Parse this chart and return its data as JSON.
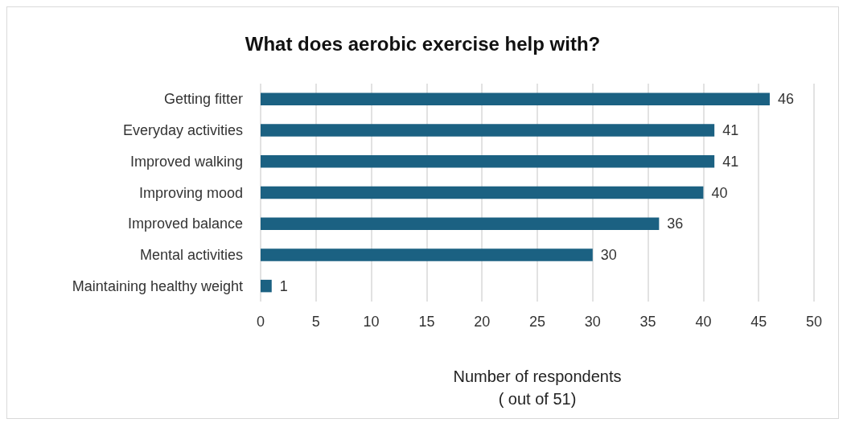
{
  "chart_data": {
    "type": "bar",
    "orientation": "horizontal",
    "title": "What does aerobic exercise help with?",
    "categories": [
      "Getting fitter",
      "Everyday activities",
      "Improved walking",
      "Improving mood",
      "Improved balance",
      "Mental activities",
      "Maintaining healthy weight"
    ],
    "values": [
      46,
      41,
      41,
      40,
      36,
      30,
      1
    ],
    "color": "#1b6182",
    "xlabel": "Number of respondents\n( out of 51)",
    "xlim": [
      0,
      50
    ],
    "xticks": [
      0,
      5,
      10,
      15,
      20,
      25,
      30,
      35,
      40,
      45,
      50
    ],
    "grid": "x",
    "data_labels": true
  }
}
